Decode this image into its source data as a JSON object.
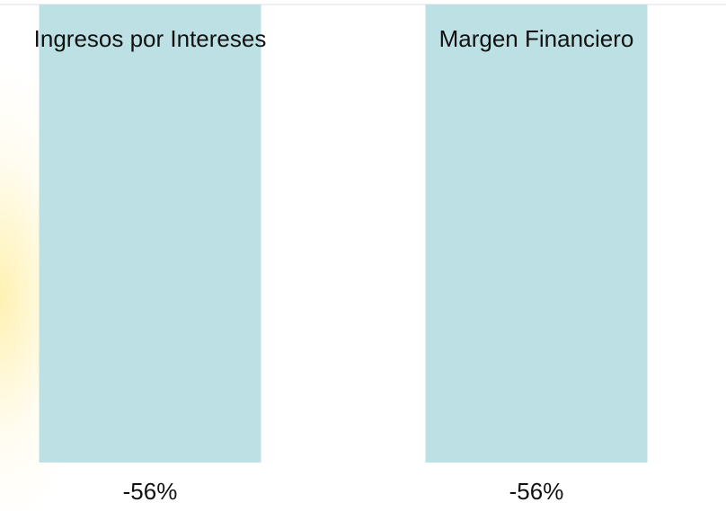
{
  "chart_data": {
    "type": "bar",
    "categories": [
      "Ingresos por Intereses",
      "Margen Financiero"
    ],
    "values": [
      -56,
      -56
    ],
    "value_labels": [
      "-56%",
      "-56%"
    ],
    "color": "#bce0e3"
  }
}
